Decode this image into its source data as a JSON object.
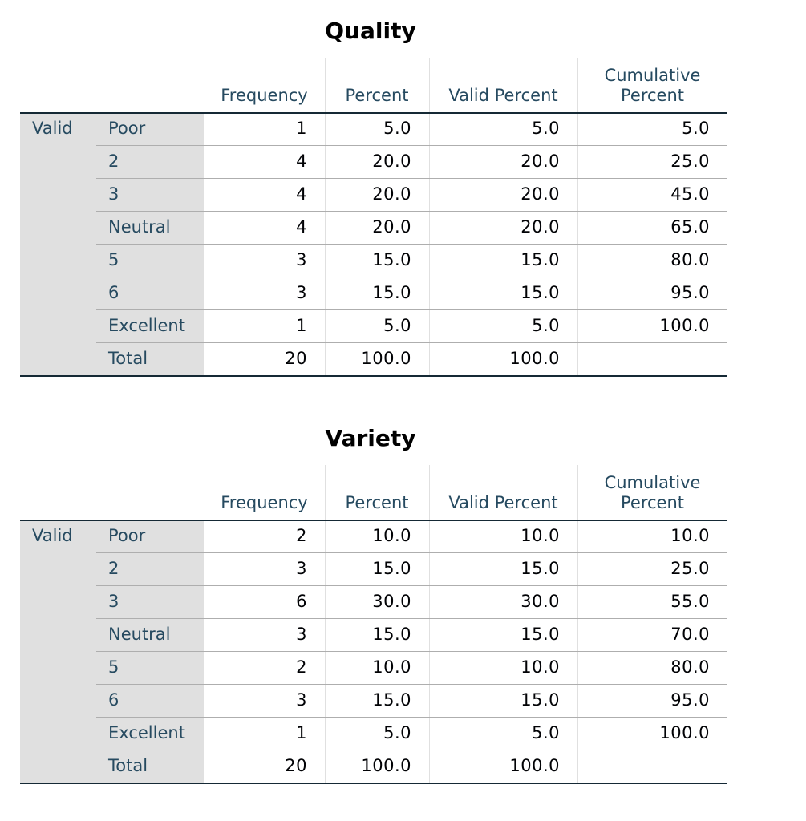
{
  "tables": [
    {
      "title": "Quality",
      "columns": [
        "Frequency",
        "Percent",
        "Valid Percent",
        "Cumulative Percent"
      ],
      "group": "Valid",
      "rows": [
        {
          "label": "Poor",
          "cells": [
            "1",
            "5.0",
            "5.0",
            "5.0"
          ]
        },
        {
          "label": "2",
          "cells": [
            "4",
            "20.0",
            "20.0",
            "25.0"
          ]
        },
        {
          "label": "3",
          "cells": [
            "4",
            "20.0",
            "20.0",
            "45.0"
          ]
        },
        {
          "label": "Neutral",
          "cells": [
            "4",
            "20.0",
            "20.0",
            "65.0"
          ]
        },
        {
          "label": "5",
          "cells": [
            "3",
            "15.0",
            "15.0",
            "80.0"
          ]
        },
        {
          "label": "6",
          "cells": [
            "3",
            "15.0",
            "15.0",
            "95.0"
          ]
        },
        {
          "label": "Excellent",
          "cells": [
            "1",
            "5.0",
            "5.0",
            "100.0"
          ]
        },
        {
          "label": "Total",
          "cells": [
            "20",
            "100.0",
            "100.0"
          ]
        }
      ]
    },
    {
      "title": "Variety",
      "columns": [
        "Frequency",
        "Percent",
        "Valid Percent",
        "Cumulative Percent"
      ],
      "group": "Valid",
      "rows": [
        {
          "label": "Poor",
          "cells": [
            "2",
            "10.0",
            "10.0",
            "10.0"
          ]
        },
        {
          "label": "2",
          "cells": [
            "3",
            "15.0",
            "15.0",
            "25.0"
          ]
        },
        {
          "label": "3",
          "cells": [
            "6",
            "30.0",
            "30.0",
            "55.0"
          ]
        },
        {
          "label": "Neutral",
          "cells": [
            "3",
            "15.0",
            "15.0",
            "70.0"
          ]
        },
        {
          "label": "5",
          "cells": [
            "2",
            "10.0",
            "10.0",
            "80.0"
          ]
        },
        {
          "label": "6",
          "cells": [
            "3",
            "15.0",
            "15.0",
            "95.0"
          ]
        },
        {
          "label": "Excellent",
          "cells": [
            "1",
            "5.0",
            "5.0",
            "100.0"
          ]
        },
        {
          "label": "Total",
          "cells": [
            "20",
            "100.0",
            "100.0"
          ]
        }
      ]
    }
  ]
}
